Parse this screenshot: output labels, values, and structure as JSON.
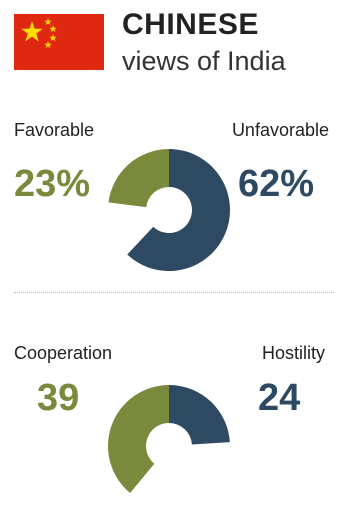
{
  "header": {
    "title": "CHINESE",
    "subtitle": "views of India",
    "flag_icon": "china-flag-icon"
  },
  "colors": {
    "green": "#7a8a3c",
    "navy": "#2e4a63",
    "flag_red": "#de2910",
    "flag_star": "#ffde00"
  },
  "chart_data": [
    {
      "type": "pie",
      "style": "half-donut",
      "categories": [
        "Favorable",
        "Unfavorable"
      ],
      "values": [
        23,
        62
      ],
      "value_labels": [
        "23%",
        "62%"
      ]
    },
    {
      "type": "pie",
      "style": "half-donut",
      "categories": [
        "Cooperation",
        "Hostility"
      ],
      "values": [
        39,
        24
      ],
      "value_labels": [
        "39",
        "24"
      ]
    }
  ]
}
